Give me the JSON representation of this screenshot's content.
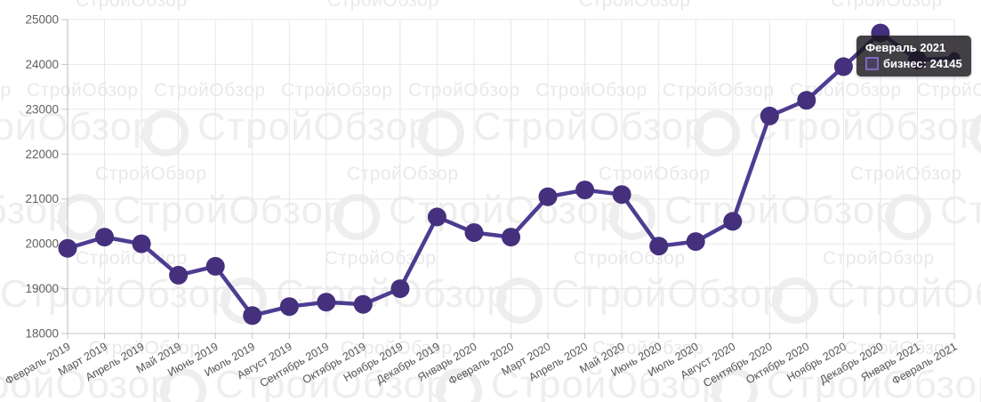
{
  "watermark": {
    "text": "СтройОбзор"
  },
  "chart_data": {
    "type": "line",
    "title": "",
    "categories": [
      "Февраль 2019",
      "Март 2019",
      "Апрель 2019",
      "Май 2019",
      "Июнь 2019",
      "Июль 2019",
      "Август 2019",
      "Сентябрь 2019",
      "Октябрь 2019",
      "Ноябрь 2019",
      "Декабрь 2019",
      "Январь 2020",
      "Февраль 2020",
      "Март 2020",
      "Апрель 2020",
      "Май 2020",
      "Июнь 2020",
      "Июль 2020",
      "Август 2020",
      "Сентябрь 2020",
      "Октябрь 2020",
      "Ноябрь 2020",
      "Декабрь 2020",
      "Январь 2021",
      "Февраль 2021"
    ],
    "series": [
      {
        "name": "бизнес",
        "color": "#44307c",
        "line_color": "#4e3c92",
        "values": [
          19900,
          20150,
          20000,
          19300,
          19500,
          18400,
          18600,
          18700,
          18650,
          19000,
          20600,
          20250,
          20150,
          21050,
          21200,
          21100,
          19950,
          20050,
          20500,
          22850,
          23200,
          23950,
          24700,
          24100,
          24145
        ]
      }
    ],
    "ylim": [
      18000,
      25000
    ],
    "y_ticks": [
      25000,
      24000,
      23000,
      22000,
      21000,
      20000,
      19000,
      18000
    ],
    "x_label_rotation": -30,
    "grid": true,
    "legend": "none"
  },
  "tooltip": {
    "title": "Февраль 2021",
    "series": "бизнес",
    "value": "24145",
    "body": "бизнес: 24145",
    "swatch_border": "#7d6ac1"
  },
  "colors": {
    "line": "#4e3c92",
    "marker": "#44307c",
    "grid": "#e7e7e7",
    "axis": "#c6c6c6",
    "tick_label": "#5f5f5f",
    "tooltip_bg": "rgba(24,22,28,0.82)"
  }
}
